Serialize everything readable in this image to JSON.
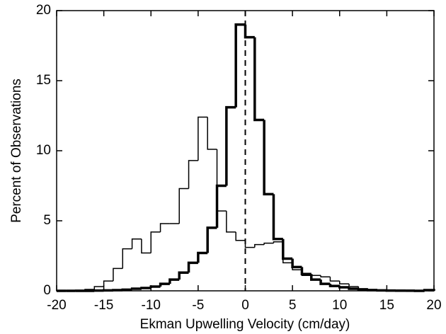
{
  "chart_data": {
    "type": "histogram",
    "xlabel": "Ekman Upwelling Velocity (cm/day)",
    "ylabel": "Percent of Observations",
    "bins": [
      -20,
      -19,
      -18,
      -17,
      -16,
      -15,
      -14,
      -13,
      -12,
      -11,
      -10,
      -9,
      -8,
      -7,
      -6,
      -5,
      -4,
      -3,
      -2,
      -1,
      0,
      1,
      2,
      3,
      4,
      5,
      6,
      7,
      8,
      9,
      10,
      11,
      12,
      13,
      14,
      15,
      16,
      17,
      18,
      19,
      20
    ],
    "series": [
      {
        "color": "#000000",
        "width": 1.5,
        "values": [
          0.02,
          0.02,
          0.05,
          0.1,
          0.3,
          0.7,
          1.6,
          3.0,
          3.7,
          2.7,
          4.2,
          4.8,
          4.8,
          7.3,
          9.3,
          12.4,
          10.1,
          5.7,
          4.2,
          3.6,
          3.1,
          3.3,
          3.4,
          3.5,
          2.0,
          1.5,
          1.1,
          1.1,
          1.0,
          0.7,
          0.5,
          0.3,
          0.15,
          0.1,
          0.05,
          0.03,
          0.02,
          0.02,
          0.01,
          0.05
        ]
      },
      {
        "color": "#000000",
        "width": 3.5,
        "values": [
          0,
          0,
          0,
          0,
          0.02,
          0.03,
          0.05,
          0.08,
          0.15,
          0.2,
          0.3,
          0.5,
          0.8,
          1.3,
          2.0,
          2.7,
          4.5,
          7.5,
          13.1,
          19.0,
          18.1,
          12.2,
          6.9,
          3.7,
          2.3,
          1.7,
          1.2,
          0.8,
          0.5,
          0.35,
          0.25,
          0.15,
          0.1,
          0.05,
          0.03,
          0.02,
          0.01,
          0.01,
          0,
          0.05
        ]
      }
    ],
    "vline": 0,
    "xlim": [
      -20,
      20
    ],
    "xticks": [
      -20,
      -15,
      -10,
      -5,
      0,
      5,
      10,
      15,
      20
    ],
    "ylim": [
      0,
      20
    ],
    "yticks": [
      0,
      5,
      10,
      15,
      20
    ]
  }
}
